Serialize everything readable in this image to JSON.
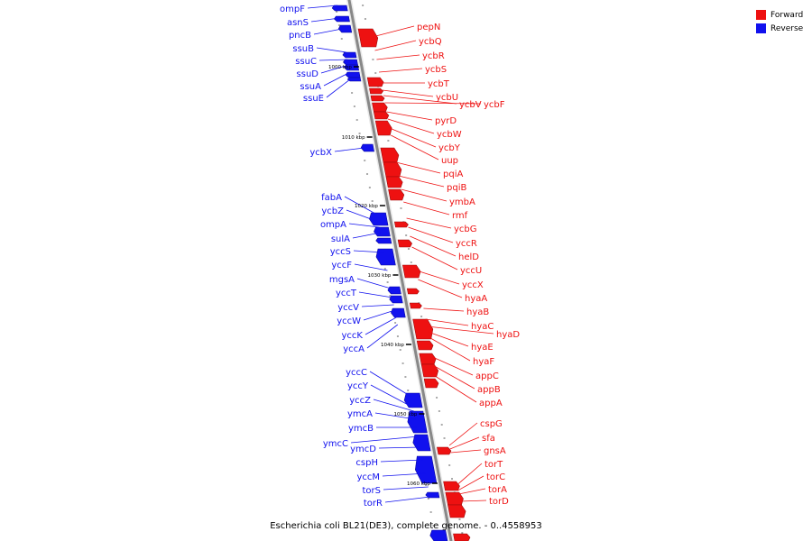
{
  "caption": "Escherichia coli BL21(DE3), complete genome. - 0..4558953",
  "legend": [
    {
      "label": "Forward",
      "color": "#ee1111"
    },
    {
      "label": "Reverse",
      "color": "#1111ee"
    }
  ],
  "colors": {
    "forward": "#ee1111",
    "reverse": "#1111ee",
    "axis": "#888888"
  },
  "ticks": [
    "1000 kbp",
    "1010 kbp",
    "1020 kbp",
    "1030 kbp",
    "1040 kbp",
    "1050 kbp",
    "1060 kbp"
  ],
  "reverse_genes": [
    "ompF",
    "asnS",
    "pncB",
    "ssuB",
    "ssuC",
    "ssuD",
    "ssuA",
    "ssuE",
    "ycbX",
    "fabA",
    "ycbZ",
    "ompA",
    "sulA",
    "yccS",
    "yccF",
    "mgsA",
    "yccT",
    "yccV",
    "yccW",
    "yccK",
    "yccA",
    "yccC",
    "yccY",
    "yccZ",
    "ymcA",
    "ymcB",
    "ymcC",
    "ymcD",
    "cspH",
    "yccM",
    "torS",
    "torR"
  ],
  "forward_genes": [
    "pepN",
    "ycbQ",
    "ycbR",
    "ycbS",
    "ycbT",
    "ycbU",
    "ycbV",
    "ycbF",
    "pyrD",
    "ycbW",
    "ycbY",
    "uup",
    "pqiA",
    "pqiB",
    "ymbA",
    "rmf",
    "ycbG",
    "yccR",
    "helD",
    "yccU",
    "yccX",
    "hyaA",
    "hyaB",
    "hyaC",
    "hyaD",
    "hyaE",
    "hyaF",
    "appC",
    "appB",
    "appA",
    "cspG",
    "sfa",
    "gnsA",
    "torT",
    "torC",
    "torA",
    "torD"
  ]
}
